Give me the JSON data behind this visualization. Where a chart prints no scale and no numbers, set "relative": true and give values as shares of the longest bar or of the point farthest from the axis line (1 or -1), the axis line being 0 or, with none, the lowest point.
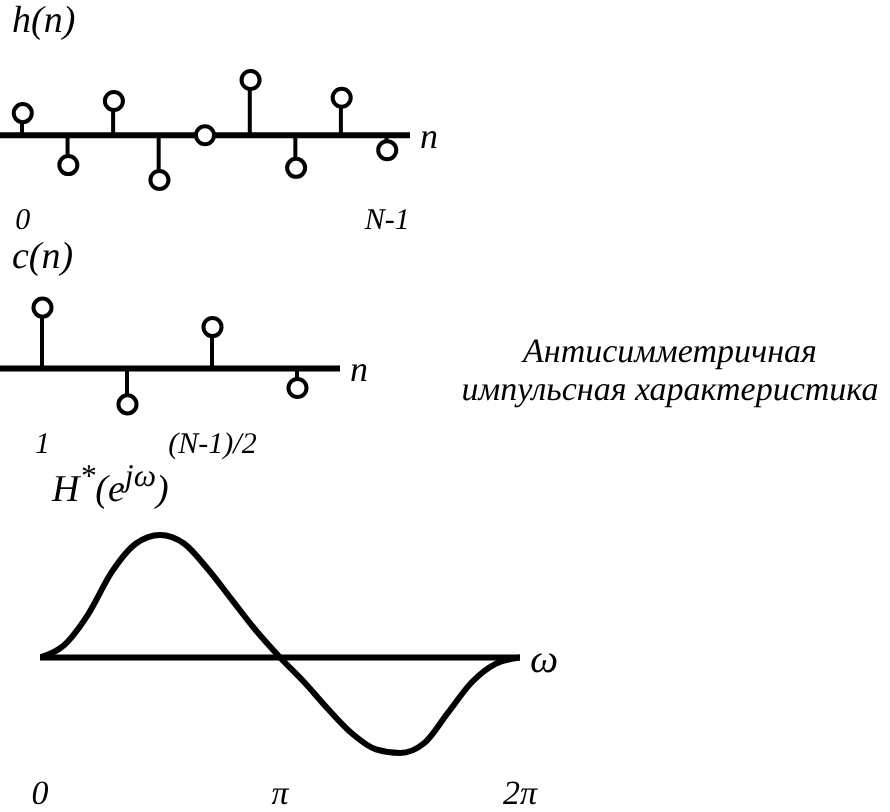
{
  "chart_data": [
    {
      "type": "lollipop",
      "ylabel": "h(n)",
      "xlabel": "n",
      "relative": true,
      "marker": "circle",
      "categories": [
        "0",
        null,
        null,
        null,
        null,
        null,
        null,
        null,
        "N-1"
      ],
      "series": [
        {
          "color": "#000000",
          "values": [
            0.4,
            -0.54,
            0.62,
            -0.81,
            0,
            1,
            -0.59,
            0.68,
            -0.27
          ]
        }
      ]
    },
    {
      "type": "lollipop",
      "ylabel": "c(n)",
      "xlabel": "n",
      "relative": true,
      "marker": "circle",
      "categories": [
        "1",
        null,
        "(N-1)/2",
        null
      ],
      "series": [
        {
          "color": "#000000",
          "values": [
            1,
            -0.59,
            0.68,
            -0.32
          ]
        }
      ],
      "annotations": [
        "Антисимметричная импульсная характеристика"
      ]
    },
    {
      "type": "line",
      "ylabel": "H$^{*}$(e$^{jω}$)",
      "xlabel": "ω",
      "relative": true,
      "xlim": [
        0,
        6.2832
      ],
      "xticks": [
        0,
        {
          "value": 3.1416,
          "label": "π"
        },
        {
          "value": 6.2832,
          "label": "2π"
        }
      ],
      "x": [
        0,
        0.314,
        0.628,
        0.942,
        1.257,
        1.571,
        1.885,
        2.199,
        2.513,
        2.827,
        3.142,
        3.456,
        3.77,
        4.084,
        4.398,
        4.712,
        5.027,
        5.341,
        5.655,
        5.969,
        6.283
      ],
      "series": [
        {
          "color": "#000000",
          "values": [
            0,
            0.1,
            0.35,
            0.7,
            0.93,
            1,
            0.93,
            0.72,
            0.47,
            0.22,
            0,
            -0.2,
            -0.42,
            -0.62,
            -0.75,
            -0.78,
            -0.7,
            -0.45,
            -0.2,
            -0.05,
            0
          ]
        }
      ]
    }
  ]
}
